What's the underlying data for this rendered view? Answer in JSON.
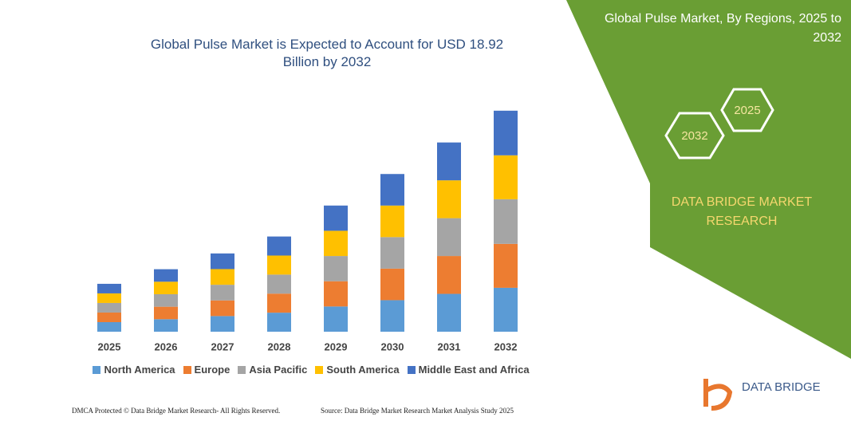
{
  "header": {
    "title": "Global Pulse Market, By Regions, 2025 to 2032",
    "hex_left": "2032",
    "hex_right": "2025",
    "brand": "DATA BRIDGE MARKET RESEARCH"
  },
  "chart_data": {
    "type": "stacked_bar",
    "title": "Global Pulse Market is Expected to Account for USD 18.92 Billion by 2032",
    "categories": [
      "2025",
      "2026",
      "2027",
      "2028",
      "2029",
      "2030",
      "2031",
      "2032"
    ],
    "series": [
      {
        "name": "North America",
        "color": "#5b9bd5",
        "values": [
          0.82,
          1.07,
          1.34,
          1.63,
          2.16,
          2.7,
          3.24,
          3.76
        ]
      },
      {
        "name": "Europe",
        "color": "#ed7d31",
        "values": [
          0.82,
          1.07,
          1.34,
          1.63,
          2.16,
          2.7,
          3.24,
          3.76
        ]
      },
      {
        "name": "Asia Pacific",
        "color": "#a5a5a5",
        "values": [
          0.82,
          1.07,
          1.34,
          1.63,
          2.16,
          2.7,
          3.24,
          3.82
        ]
      },
      {
        "name": "South America",
        "color": "#ffc000",
        "values": [
          0.82,
          1.07,
          1.34,
          1.63,
          2.16,
          2.7,
          3.24,
          3.76
        ]
      },
      {
        "name": "Middle East and Africa",
        "color": "#4472c4",
        "values": [
          0.82,
          1.07,
          1.34,
          1.63,
          2.16,
          2.7,
          3.24,
          3.82
        ]
      }
    ],
    "ylim": [
      0,
      20
    ]
  },
  "footer": {
    "left": "DMCA Protected © Data Bridge Market Research- All Rights Reserved.",
    "right": "Source: Data Bridge Market Research Market Analysis Study 2025"
  },
  "logo": {
    "name": "DATA BRIDGE"
  }
}
